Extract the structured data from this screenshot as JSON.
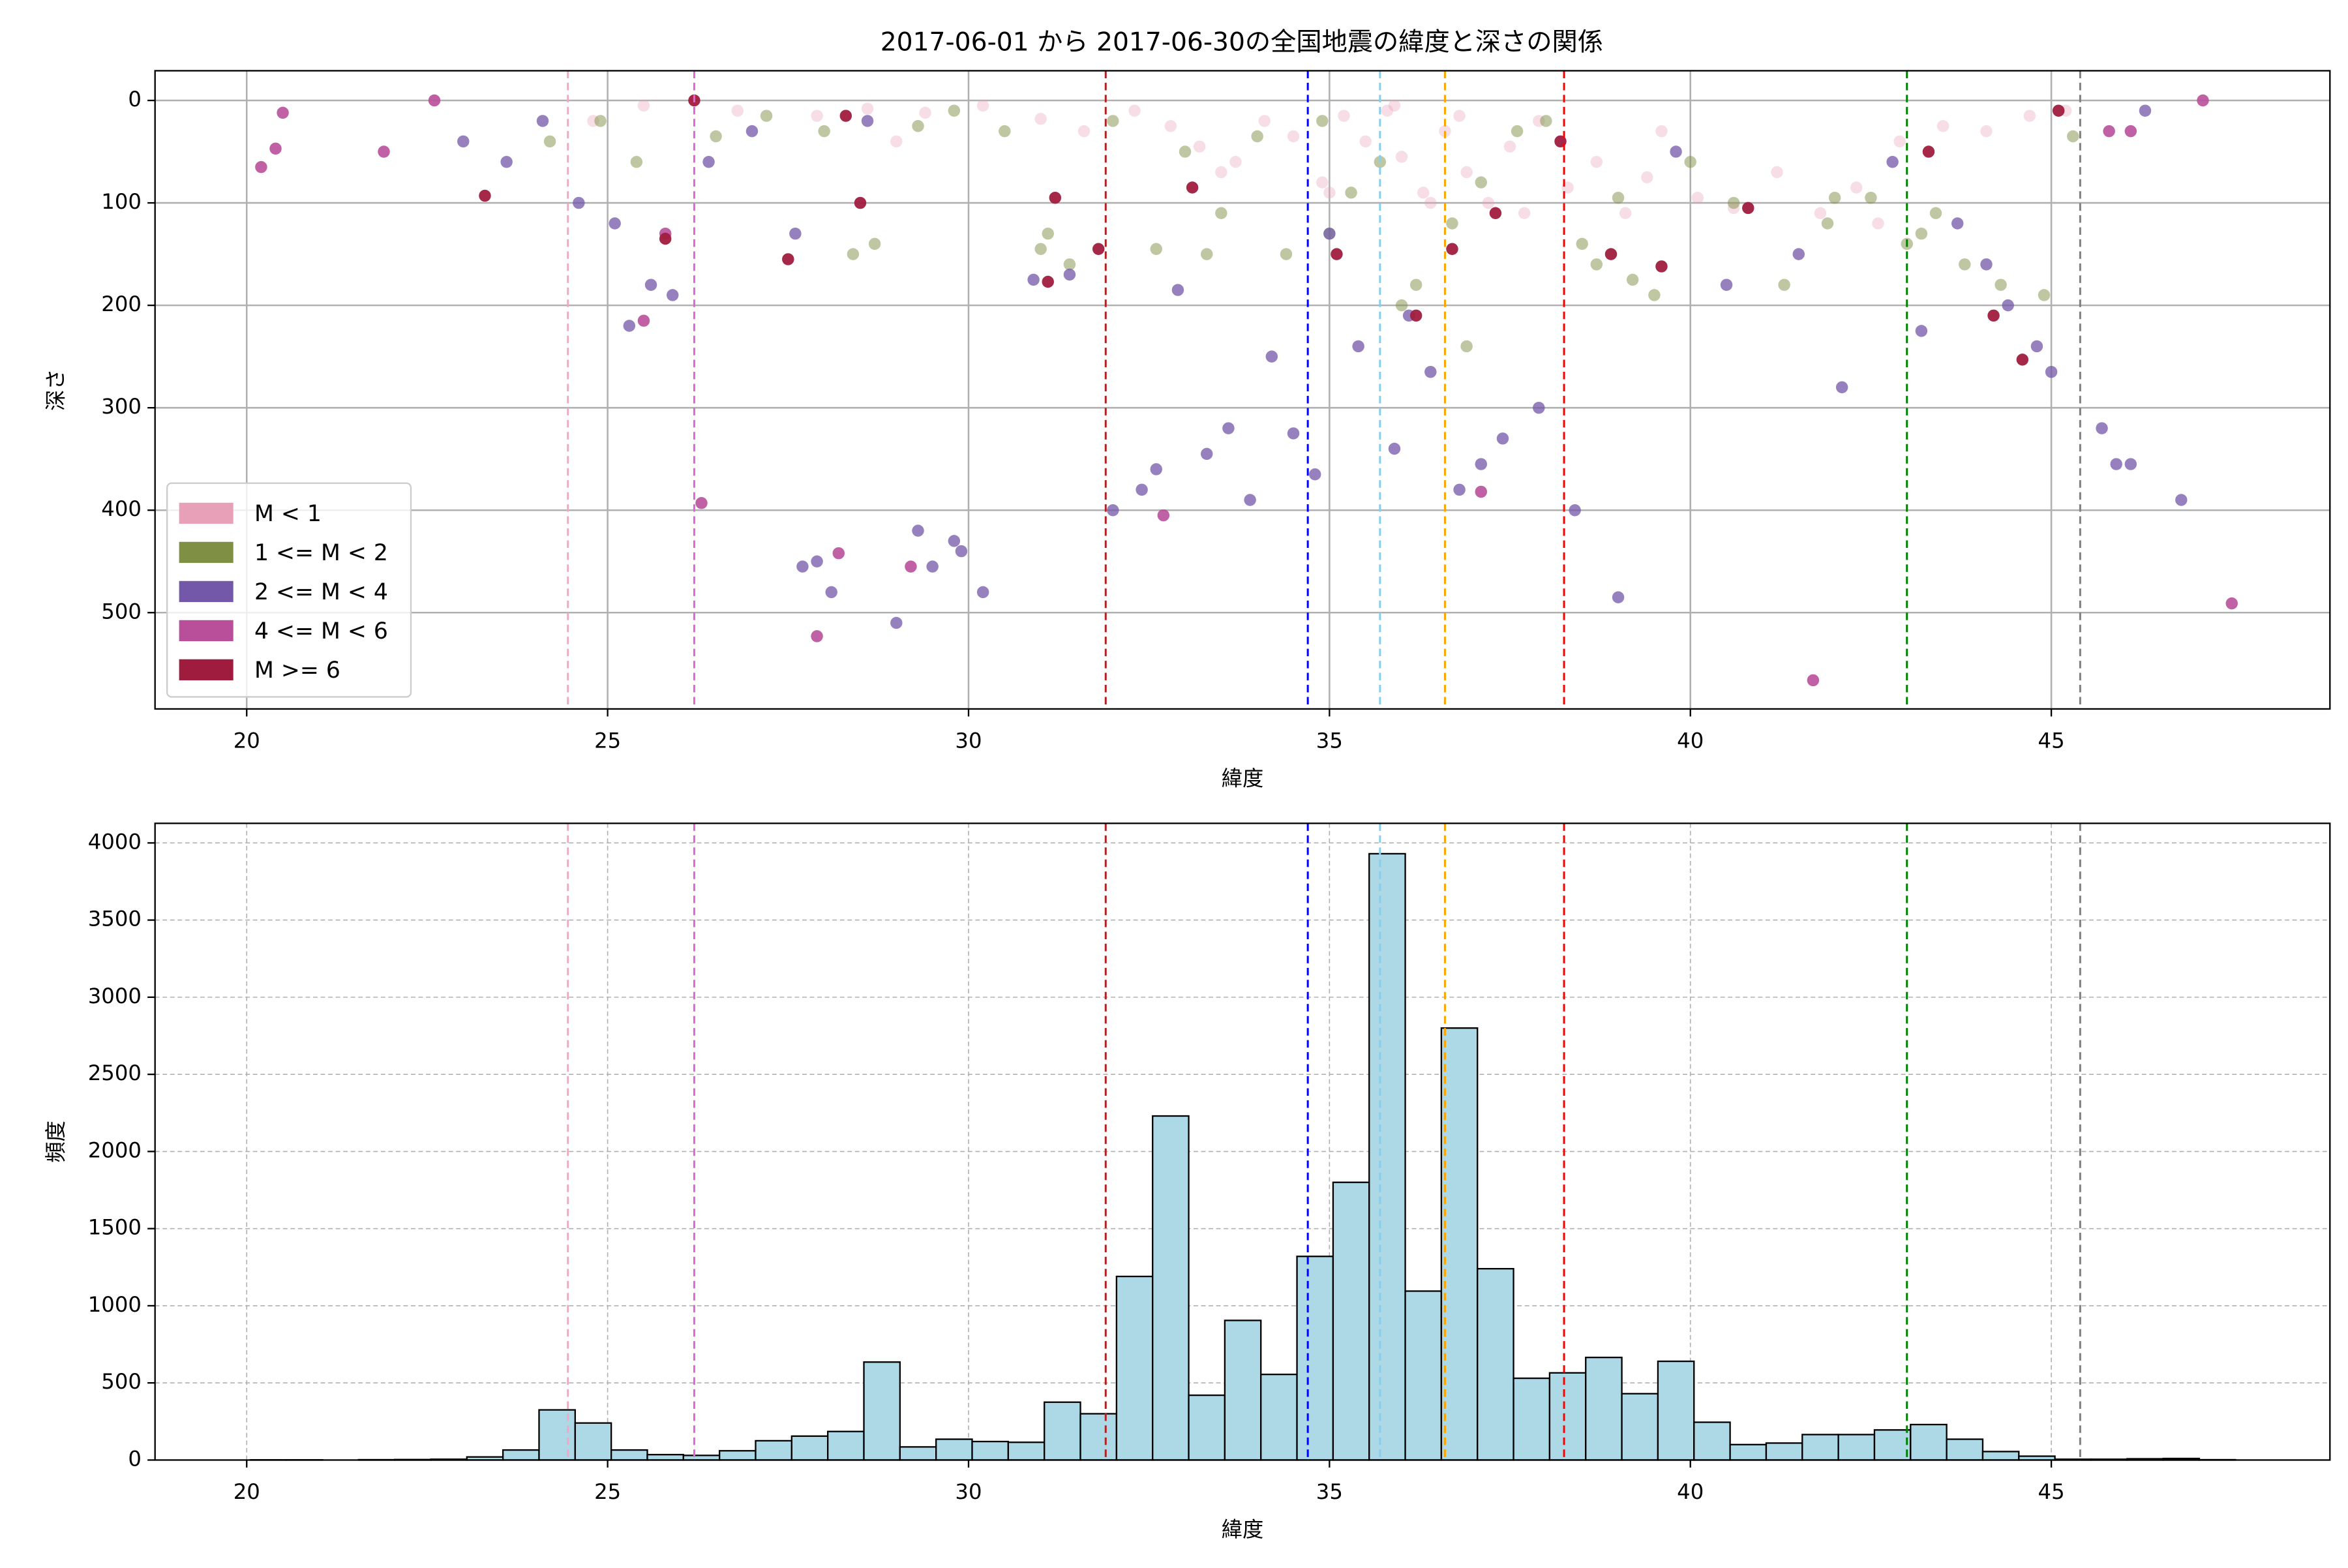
{
  "chart_data": [
    {
      "type": "scatter",
      "title": "2017-06-01 から 2017-06-30の全国地震の緯度と深さの関係",
      "x_label": "緯度",
      "y_label": "深さ",
      "xlim": [
        18.73,
        48.86
      ],
      "ylim": [
        -29,
        594
      ],
      "y_inverted": true,
      "xticks": [
        20,
        25,
        30,
        35,
        40,
        45
      ],
      "yticks": [
        0,
        100,
        200,
        300,
        400,
        500
      ],
      "grid": true,
      "grid_style": "solid",
      "legend": "lower left",
      "reference_lines": [
        {
          "x": 24.45,
          "color": "#f4a6c8"
        },
        {
          "x": 26.2,
          "color": "#e066d8"
        },
        {
          "x": 31.9,
          "color": "#b22222"
        },
        {
          "x": 34.7,
          "color": "#0000ff"
        },
        {
          "x": 35.7,
          "color": "#87ceeb"
        },
        {
          "x": 36.6,
          "color": "#ffa500"
        },
        {
          "x": 38.25,
          "color": "#ff0000"
        },
        {
          "x": 43.0,
          "color": "#008000"
        },
        {
          "x": 45.4,
          "color": "#808080"
        }
      ],
      "series": [
        {
          "name": "M < 1",
          "color": "#e8a0b8",
          "alpha": 0.35,
          "x": [
            24.8,
            25.5,
            26.8,
            27.9,
            28.6,
            29.4,
            30.2,
            31.0,
            31.6,
            32.3,
            32.8,
            33.2,
            33.7,
            34.1,
            34.5,
            34.9,
            35.2,
            35.5,
            35.8,
            36.0,
            36.3,
            36.6,
            36.9,
            37.2,
            37.5,
            37.9,
            38.3,
            38.7,
            39.1,
            39.6,
            40.1,
            40.6,
            41.2,
            41.8,
            42.3,
            42.9,
            43.5,
            44.1,
            44.7,
            45.2,
            33.5,
            35.0,
            36.4,
            37.7,
            29.0,
            39.4,
            42.6,
            22.6,
            35.9,
            36.8
          ],
          "y": [
            20,
            5,
            10,
            15,
            8,
            12,
            5,
            18,
            30,
            10,
            25,
            45,
            60,
            20,
            35,
            80,
            15,
            40,
            10,
            55,
            90,
            30,
            70,
            100,
            45,
            20,
            85,
            60,
            110,
            30,
            95,
            105,
            70,
            110,
            85,
            40,
            25,
            30,
            15,
            10,
            70,
            90,
            100,
            110,
            40,
            75,
            120,
            0,
            5,
            15
          ]
        },
        {
          "name": "1 <= M < 2",
          "color": "#7f9045",
          "alpha": 0.5,
          "x": [
            24.2,
            24.9,
            25.4,
            26.5,
            27.2,
            28.0,
            28.7,
            29.3,
            29.8,
            30.5,
            31.1,
            31.4,
            32.0,
            32.6,
            33.0,
            33.5,
            34.0,
            34.4,
            34.9,
            35.3,
            35.7,
            36.2,
            36.7,
            37.1,
            37.6,
            38.0,
            38.5,
            39.0,
            39.5,
            40.0,
            40.6,
            41.3,
            41.9,
            42.5,
            43.0,
            43.4,
            43.8,
            44.3,
            44.9,
            45.3,
            28.4,
            31.0,
            33.3,
            36.0,
            36.9,
            38.7,
            39.2,
            42.0,
            43.2,
            35.0
          ],
          "y": [
            40,
            20,
            60,
            35,
            15,
            30,
            140,
            25,
            10,
            30,
            130,
            160,
            20,
            145,
            50,
            110,
            35,
            150,
            20,
            90,
            60,
            180,
            120,
            80,
            30,
            20,
            140,
            95,
            190,
            60,
            100,
            180,
            120,
            95,
            140,
            110,
            160,
            180,
            190,
            35,
            150,
            145,
            150,
            200,
            240,
            160,
            175,
            95,
            130,
            130
          ]
        },
        {
          "name": "2 <= M < 4",
          "color": "#7357a8",
          "alpha": 0.75,
          "x": [
            23.0,
            23.6,
            24.1,
            24.6,
            25.1,
            25.3,
            25.6,
            25.9,
            26.4,
            27.0,
            27.6,
            27.7,
            27.9,
            28.1,
            28.6,
            29.0,
            29.3,
            29.5,
            29.8,
            29.9,
            30.2,
            30.9,
            31.4,
            32.0,
            32.4,
            32.6,
            32.9,
            33.3,
            33.6,
            33.9,
            34.2,
            34.5,
            34.8,
            35.0,
            35.4,
            35.9,
            36.1,
            36.4,
            36.8,
            37.1,
            37.4,
            37.9,
            38.4,
            39.0,
            39.8,
            40.5,
            41.5,
            42.1,
            42.8,
            43.2,
            43.7,
            44.1,
            44.4,
            44.8,
            45.0,
            45.7,
            45.9,
            46.1,
            46.8,
            46.3
          ],
          "y": [
            40,
            60,
            20,
            100,
            120,
            220,
            180,
            190,
            60,
            30,
            130,
            455,
            450,
            480,
            20,
            510,
            420,
            455,
            430,
            440,
            480,
            175,
            170,
            400,
            380,
            360,
            185,
            345,
            320,
            390,
            250,
            325,
            365,
            130,
            240,
            340,
            210,
            265,
            380,
            355,
            330,
            300,
            400,
            485,
            50,
            180,
            150,
            280,
            60,
            225,
            120,
            160,
            200,
            240,
            265,
            320,
            355,
            355,
            390,
            10
          ]
        },
        {
          "name": "4 <= M < 6",
          "color": "#b94f9b",
          "alpha": 0.9,
          "x": [
            20.2,
            20.4,
            20.5,
            21.9,
            22.6,
            25.5,
            25.8,
            26.3,
            28.2,
            27.9,
            29.2,
            32.7,
            37.1,
            41.7,
            45.8,
            46.1,
            47.1,
            47.5
          ],
          "y": [
            65,
            47,
            12,
            50,
            0,
            215,
            130,
            393,
            442,
            523,
            455,
            405,
            382,
            566,
            30,
            30,
            0,
            491
          ]
        },
        {
          "name": "M >= 6",
          "color": "#a01c3e",
          "alpha": 0.95,
          "x": [
            23.3,
            25.8,
            26.2,
            27.5,
            28.3,
            28.5,
            31.1,
            31.2,
            31.8,
            33.1,
            35.1,
            36.2,
            36.7,
            37.3,
            38.2,
            38.9,
            39.6,
            40.8,
            43.3,
            44.2,
            44.6,
            45.1
          ],
          "y": [
            93,
            135,
            0,
            155,
            15,
            100,
            177,
            95,
            145,
            85,
            150,
            210,
            145,
            110,
            40,
            150,
            162,
            105,
            50,
            210,
            253,
            10
          ]
        }
      ]
    },
    {
      "type": "histogram",
      "x_label": "緯度",
      "y_label": "頻度",
      "xlim": [
        18.73,
        48.86
      ],
      "ylim": [
        0,
        4127
      ],
      "xticks": [
        20,
        25,
        30,
        35,
        40,
        45
      ],
      "yticks": [
        0,
        500,
        1000,
        1500,
        2000,
        2500,
        3000,
        3500,
        4000
      ],
      "grid": true,
      "grid_style": "dashed",
      "color": "#add8e6",
      "edgecolor": "#000000",
      "reference_lines": [
        {
          "x": 24.45,
          "color": "#f4a6c8"
        },
        {
          "x": 26.2,
          "color": "#e066d8"
        },
        {
          "x": 31.9,
          "color": "#b22222"
        },
        {
          "x": 34.7,
          "color": "#0000ff"
        },
        {
          "x": 35.7,
          "color": "#87ceeb"
        },
        {
          "x": 36.6,
          "color": "#ffa500"
        },
        {
          "x": 38.25,
          "color": "#ff0000"
        },
        {
          "x": 43.0,
          "color": "#008000"
        },
        {
          "x": 45.4,
          "color": "#808080"
        }
      ],
      "bins": [
        20.05,
        20.55,
        21.05,
        21.55,
        22.05,
        22.55,
        23.05,
        23.55,
        24.05,
        24.55,
        25.05,
        25.55,
        26.05,
        26.55,
        27.05,
        27.55,
        28.05,
        28.55,
        29.05,
        29.55,
        30.05,
        30.55,
        31.05,
        31.55,
        32.05,
        32.55,
        33.05,
        33.55,
        34.05,
        34.55,
        35.05,
        35.55,
        36.05,
        36.55,
        37.05,
        37.55,
        38.05,
        38.55,
        39.05,
        39.55,
        40.05,
        40.55,
        41.05,
        41.55,
        42.05,
        42.55,
        43.05,
        43.55,
        44.05,
        44.55,
        45.05,
        45.55,
        46.05,
        46.55,
        47.05,
        47.55
      ],
      "values": [
        1,
        1,
        0,
        2,
        3,
        5,
        20,
        65,
        325,
        240,
        65,
        35,
        30,
        60,
        125,
        155,
        185,
        635,
        85,
        135,
        120,
        115,
        375,
        300,
        1190,
        2230,
        420,
        905,
        555,
        1320,
        1800,
        3930,
        1095,
        2800,
        1240,
        530,
        565,
        665,
        430,
        640,
        245,
        100,
        110,
        165,
        165,
        195,
        230,
        135,
        55,
        25,
        5,
        5,
        8,
        10,
        2
      ]
    }
  ]
}
